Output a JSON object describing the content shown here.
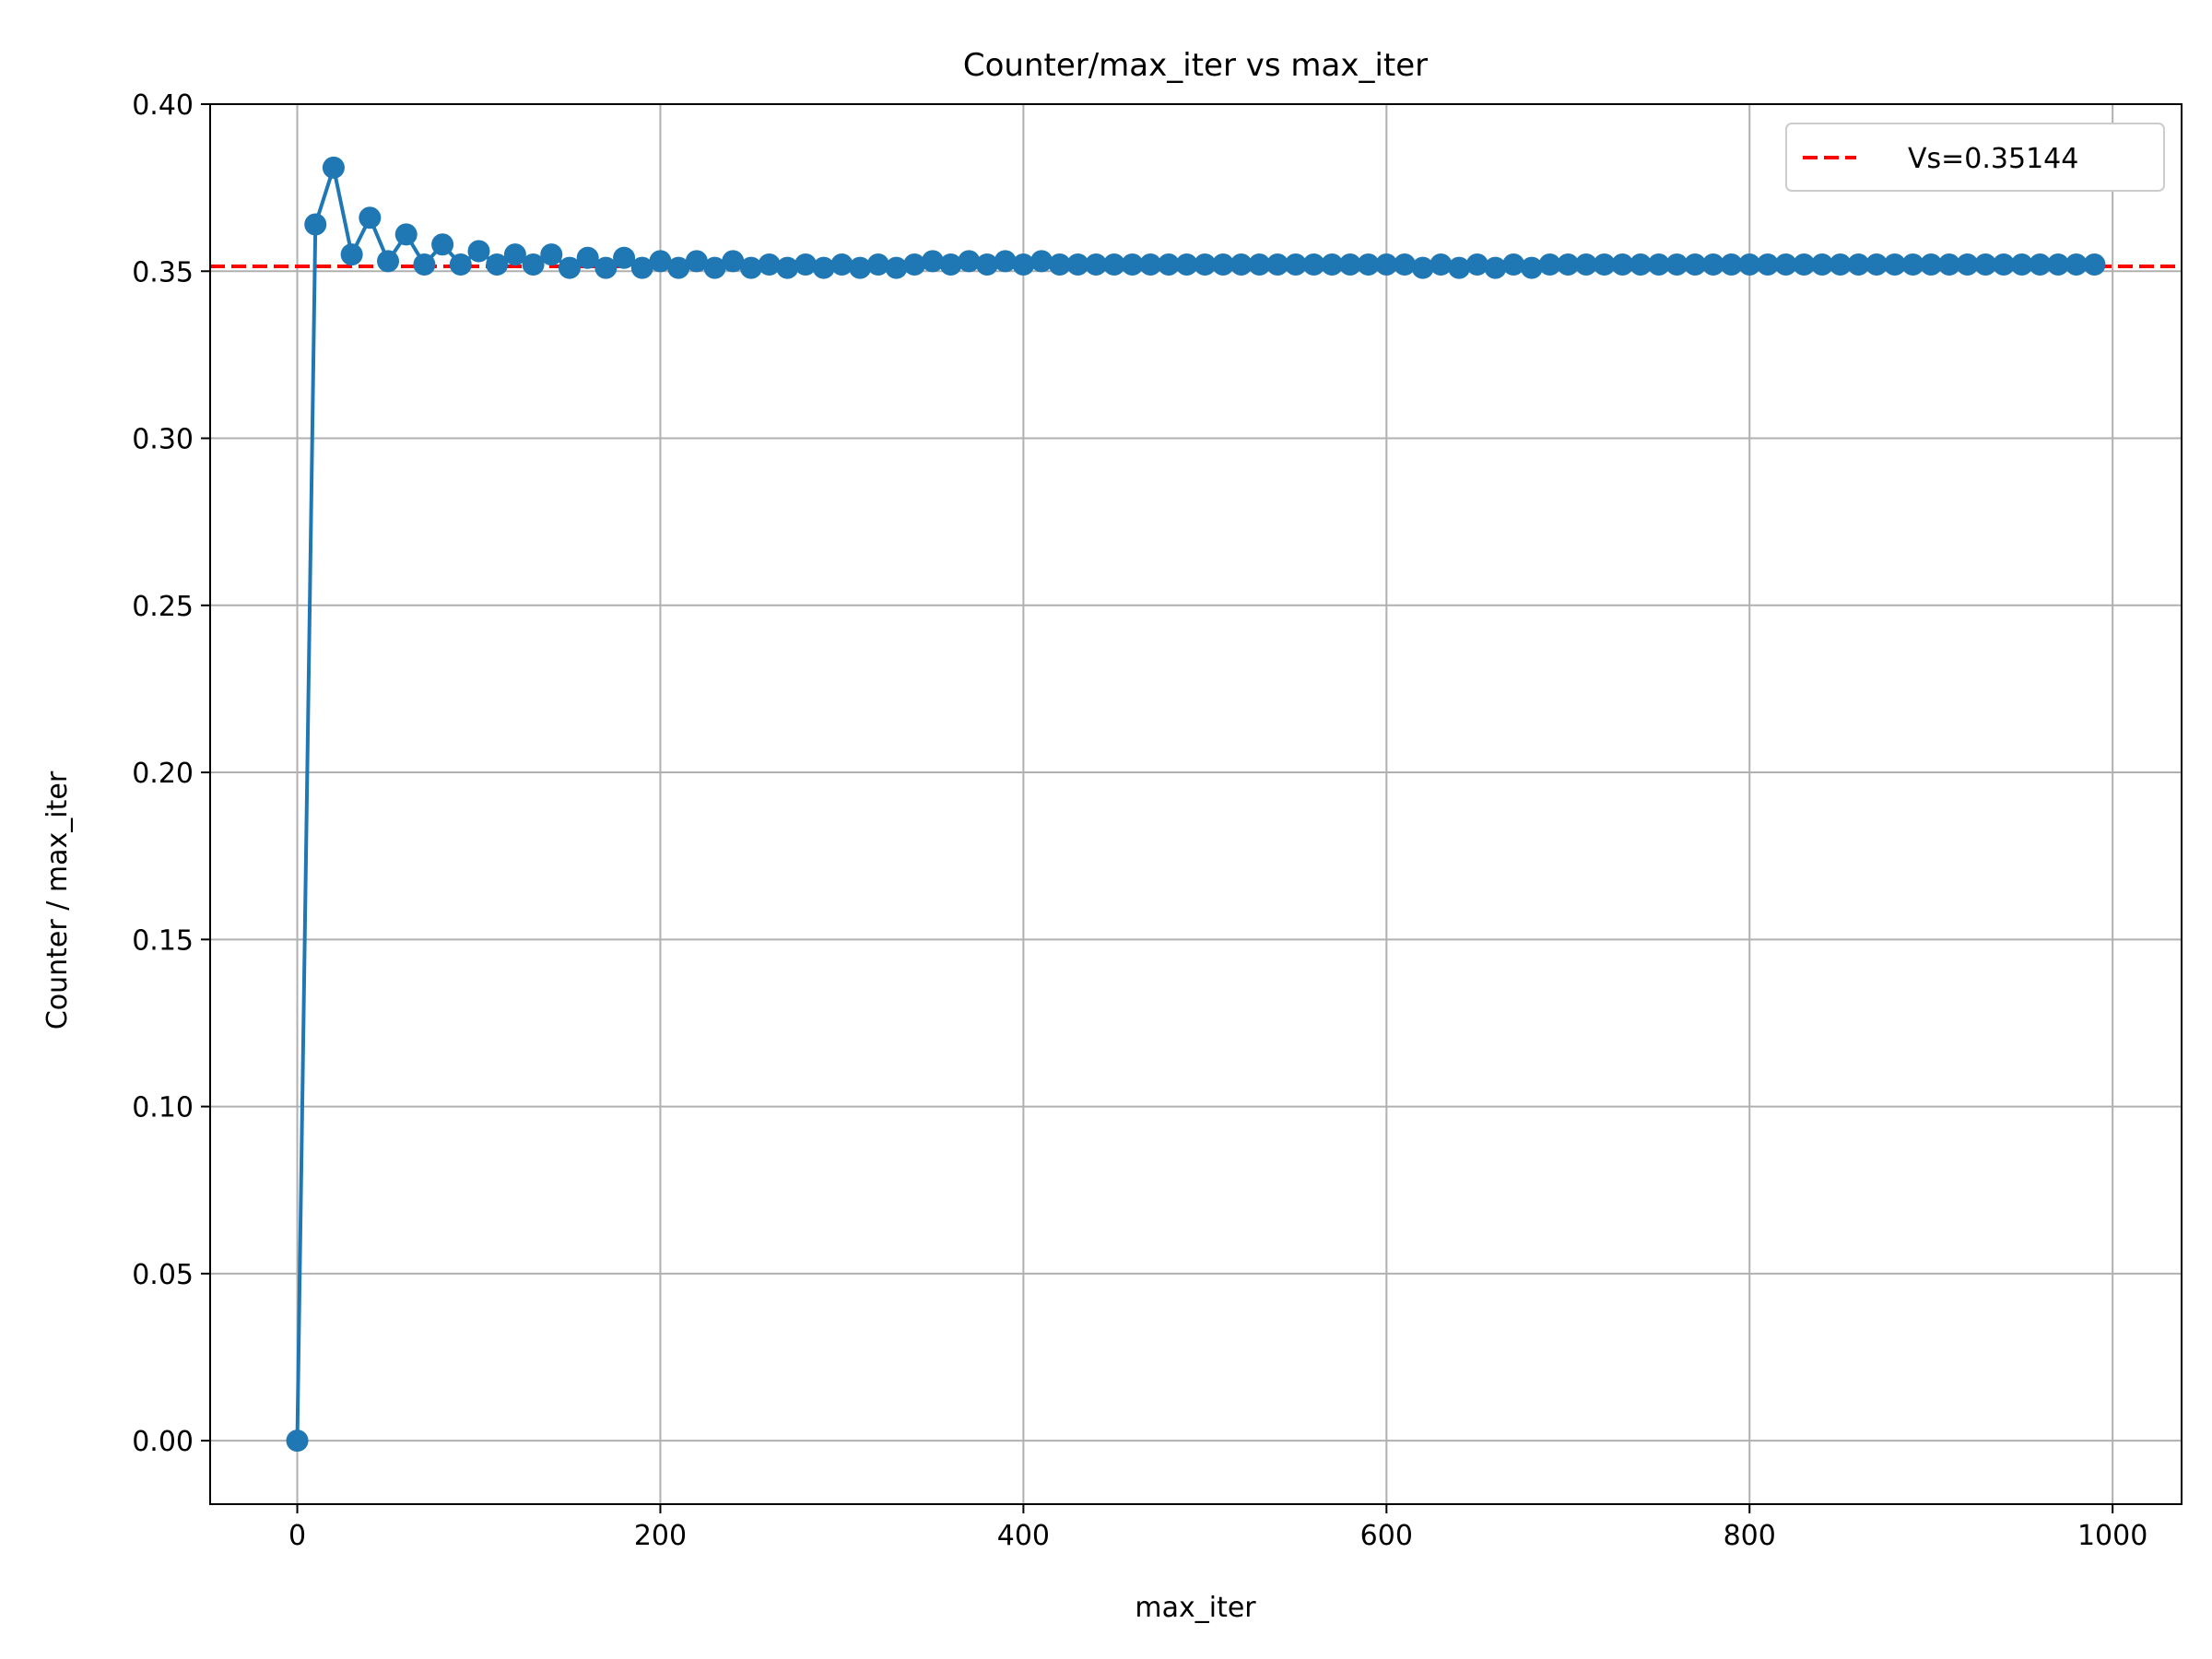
{
  "chart_data": {
    "type": "line",
    "title": "Counter/max_iter vs max_iter",
    "xlabel": "max_iter",
    "ylabel": "Counter / max_iter",
    "xlim": [
      -48,
      1038
    ],
    "ylim": [
      -0.019,
      0.4
    ],
    "grid": true,
    "xticks": [
      0,
      200,
      400,
      600,
      800,
      1000
    ],
    "xtick_labels": [
      "0",
      "200",
      "400",
      "600",
      "800",
      "1000"
    ],
    "yticks": [
      0.0,
      0.05,
      0.1,
      0.15,
      0.2,
      0.25,
      0.3,
      0.35,
      0.4
    ],
    "ytick_labels": [
      "0.00",
      "0.05",
      "0.10",
      "0.15",
      "0.20",
      "0.25",
      "0.30",
      "0.35",
      "0.40"
    ],
    "legend_position": "top-right",
    "series": [
      {
        "color": "#1f77b4",
        "marker": "circle",
        "x": [
          0,
          10,
          20,
          30,
          40,
          50,
          60,
          70,
          80,
          90,
          100,
          110,
          120,
          130,
          140,
          150,
          160,
          170,
          180,
          190,
          200,
          210,
          220,
          230,
          240,
          250,
          260,
          270,
          280,
          290,
          300,
          310,
          320,
          330,
          340,
          350,
          360,
          370,
          380,
          390,
          400,
          410,
          420,
          430,
          440,
          450,
          460,
          470,
          480,
          490,
          500,
          510,
          520,
          530,
          540,
          550,
          560,
          570,
          580,
          590,
          600,
          610,
          620,
          630,
          640,
          650,
          660,
          670,
          680,
          690,
          700,
          710,
          720,
          730,
          740,
          750,
          760,
          770,
          780,
          790,
          800,
          810,
          820,
          830,
          840,
          850,
          860,
          870,
          880,
          890,
          900,
          910,
          920,
          930,
          940,
          950,
          960,
          970,
          980,
          990
        ],
        "values": [
          0.0,
          0.364,
          0.381,
          0.355,
          0.366,
          0.353,
          0.361,
          0.352,
          0.358,
          0.352,
          0.356,
          0.352,
          0.355,
          0.352,
          0.355,
          0.351,
          0.354,
          0.351,
          0.354,
          0.351,
          0.353,
          0.351,
          0.353,
          0.351,
          0.353,
          0.351,
          0.352,
          0.351,
          0.352,
          0.351,
          0.352,
          0.351,
          0.352,
          0.351,
          0.352,
          0.353,
          0.352,
          0.353,
          0.352,
          0.353,
          0.352,
          0.353,
          0.352,
          0.352,
          0.352,
          0.352,
          0.352,
          0.352,
          0.352,
          0.352,
          0.352,
          0.352,
          0.352,
          0.352,
          0.352,
          0.352,
          0.352,
          0.352,
          0.352,
          0.352,
          0.352,
          0.352,
          0.351,
          0.352,
          0.351,
          0.352,
          0.351,
          0.352,
          0.351,
          0.352,
          0.352,
          0.352,
          0.352,
          0.352,
          0.352,
          0.352,
          0.352,
          0.352,
          0.352,
          0.352,
          0.352,
          0.352,
          0.352,
          0.352,
          0.352,
          0.352,
          0.352,
          0.352,
          0.352,
          0.352,
          0.352,
          0.352,
          0.352,
          0.352,
          0.352,
          0.352,
          0.352,
          0.352,
          0.352,
          0.352
        ]
      }
    ],
    "reference_line": {
      "y": 0.35144,
      "color": "#ff0000",
      "style": "dashed",
      "label": "Vs=0.35144"
    }
  }
}
